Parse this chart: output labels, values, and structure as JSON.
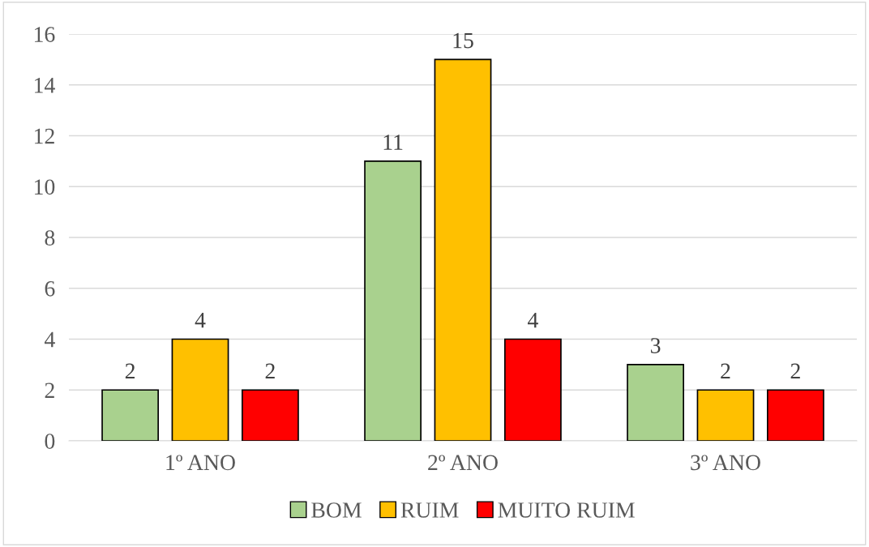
{
  "chart_data": {
    "type": "bar",
    "categories": [
      "1º ANO",
      "2º ANO",
      "3º ANO"
    ],
    "series": [
      {
        "name": "BOM",
        "color": "#a9d18e",
        "values": [
          2,
          11,
          3
        ]
      },
      {
        "name": "RUIM",
        "color": "#ffc000",
        "values": [
          4,
          15,
          2
        ]
      },
      {
        "name": "MUITO RUIM",
        "color": "#ff0000",
        "values": [
          2,
          4,
          2
        ]
      }
    ],
    "ylim": [
      0,
      16
    ],
    "yticks": [
      0,
      2,
      4,
      6,
      8,
      10,
      12,
      14,
      16
    ],
    "grid": "y",
    "legend": "bottom",
    "data_labels": true
  }
}
